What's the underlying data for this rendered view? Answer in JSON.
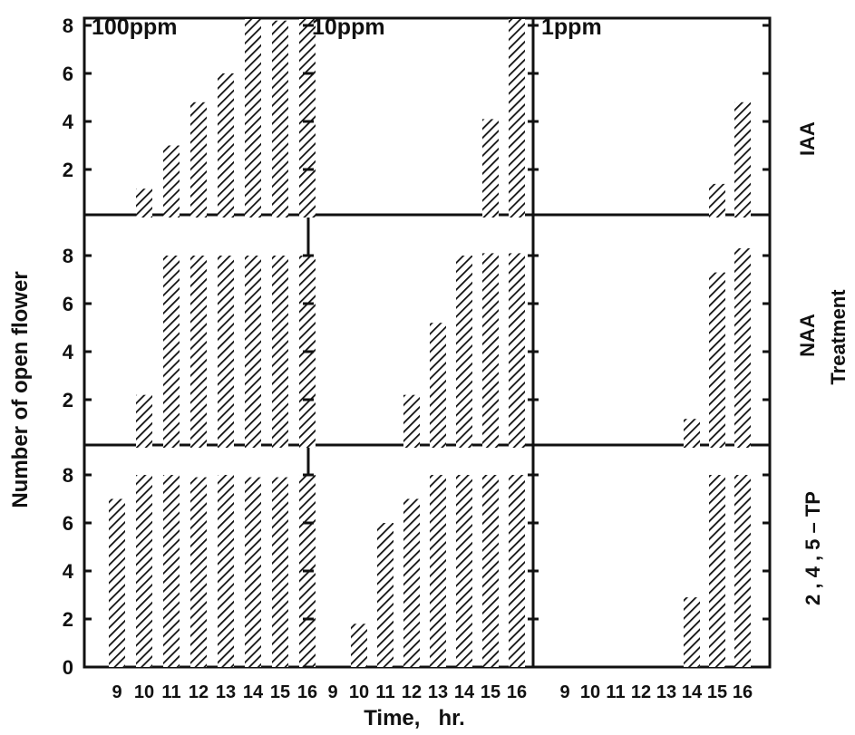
{
  "chart_data": {
    "type": "bar",
    "ylabel": "Number of open flower",
    "xlabel": "Time,   hr.",
    "row_group_label": "Treatment",
    "columns": [
      "100ppm",
      "10ppm",
      "1ppm"
    ],
    "rows": [
      "IAA",
      "NAA",
      "2 , 4 , 5 – TP"
    ],
    "x": [
      9,
      10,
      11,
      12,
      13,
      14,
      15,
      16
    ],
    "x_tick_labels": [
      "9",
      "10",
      "11",
      "12",
      "13",
      "14",
      "15",
      "16"
    ],
    "ylim": [
      0,
      9
    ],
    "y_ticks_top_row": [
      "2",
      "4",
      "6",
      "8"
    ],
    "y_ticks_middle_row": [
      "2",
      "4",
      "6",
      "8"
    ],
    "y_ticks_bottom_row": [
      "0",
      "2",
      "4",
      "6",
      "8"
    ],
    "grid": false,
    "values": [
      [
        [
          0,
          1.2,
          3.0,
          4.8,
          6.0,
          8.3,
          8.2,
          8.3
        ],
        [
          0,
          0,
          0,
          0,
          0,
          0,
          4.1,
          8.5
        ],
        [
          0,
          0,
          0,
          0,
          0,
          0,
          1.4,
          4.8
        ]
      ],
      [
        [
          0,
          2.2,
          8.0,
          8.0,
          8.0,
          8.0,
          8.0,
          8.0
        ],
        [
          0,
          0,
          0,
          2.2,
          5.2,
          8.0,
          8.1,
          8.1
        ],
        [
          0,
          0,
          0,
          0,
          0,
          1.2,
          7.3,
          8.3
        ]
      ],
      [
        [
          7.0,
          8.0,
          8.0,
          7.9,
          8.0,
          7.9,
          7.9,
          8.0
        ],
        [
          0,
          1.8,
          6.0,
          7.0,
          8.0,
          8.0,
          8.0,
          8.0
        ],
        [
          0,
          0,
          0,
          0,
          0,
          2.9,
          8.0,
          8.0
        ]
      ]
    ]
  }
}
